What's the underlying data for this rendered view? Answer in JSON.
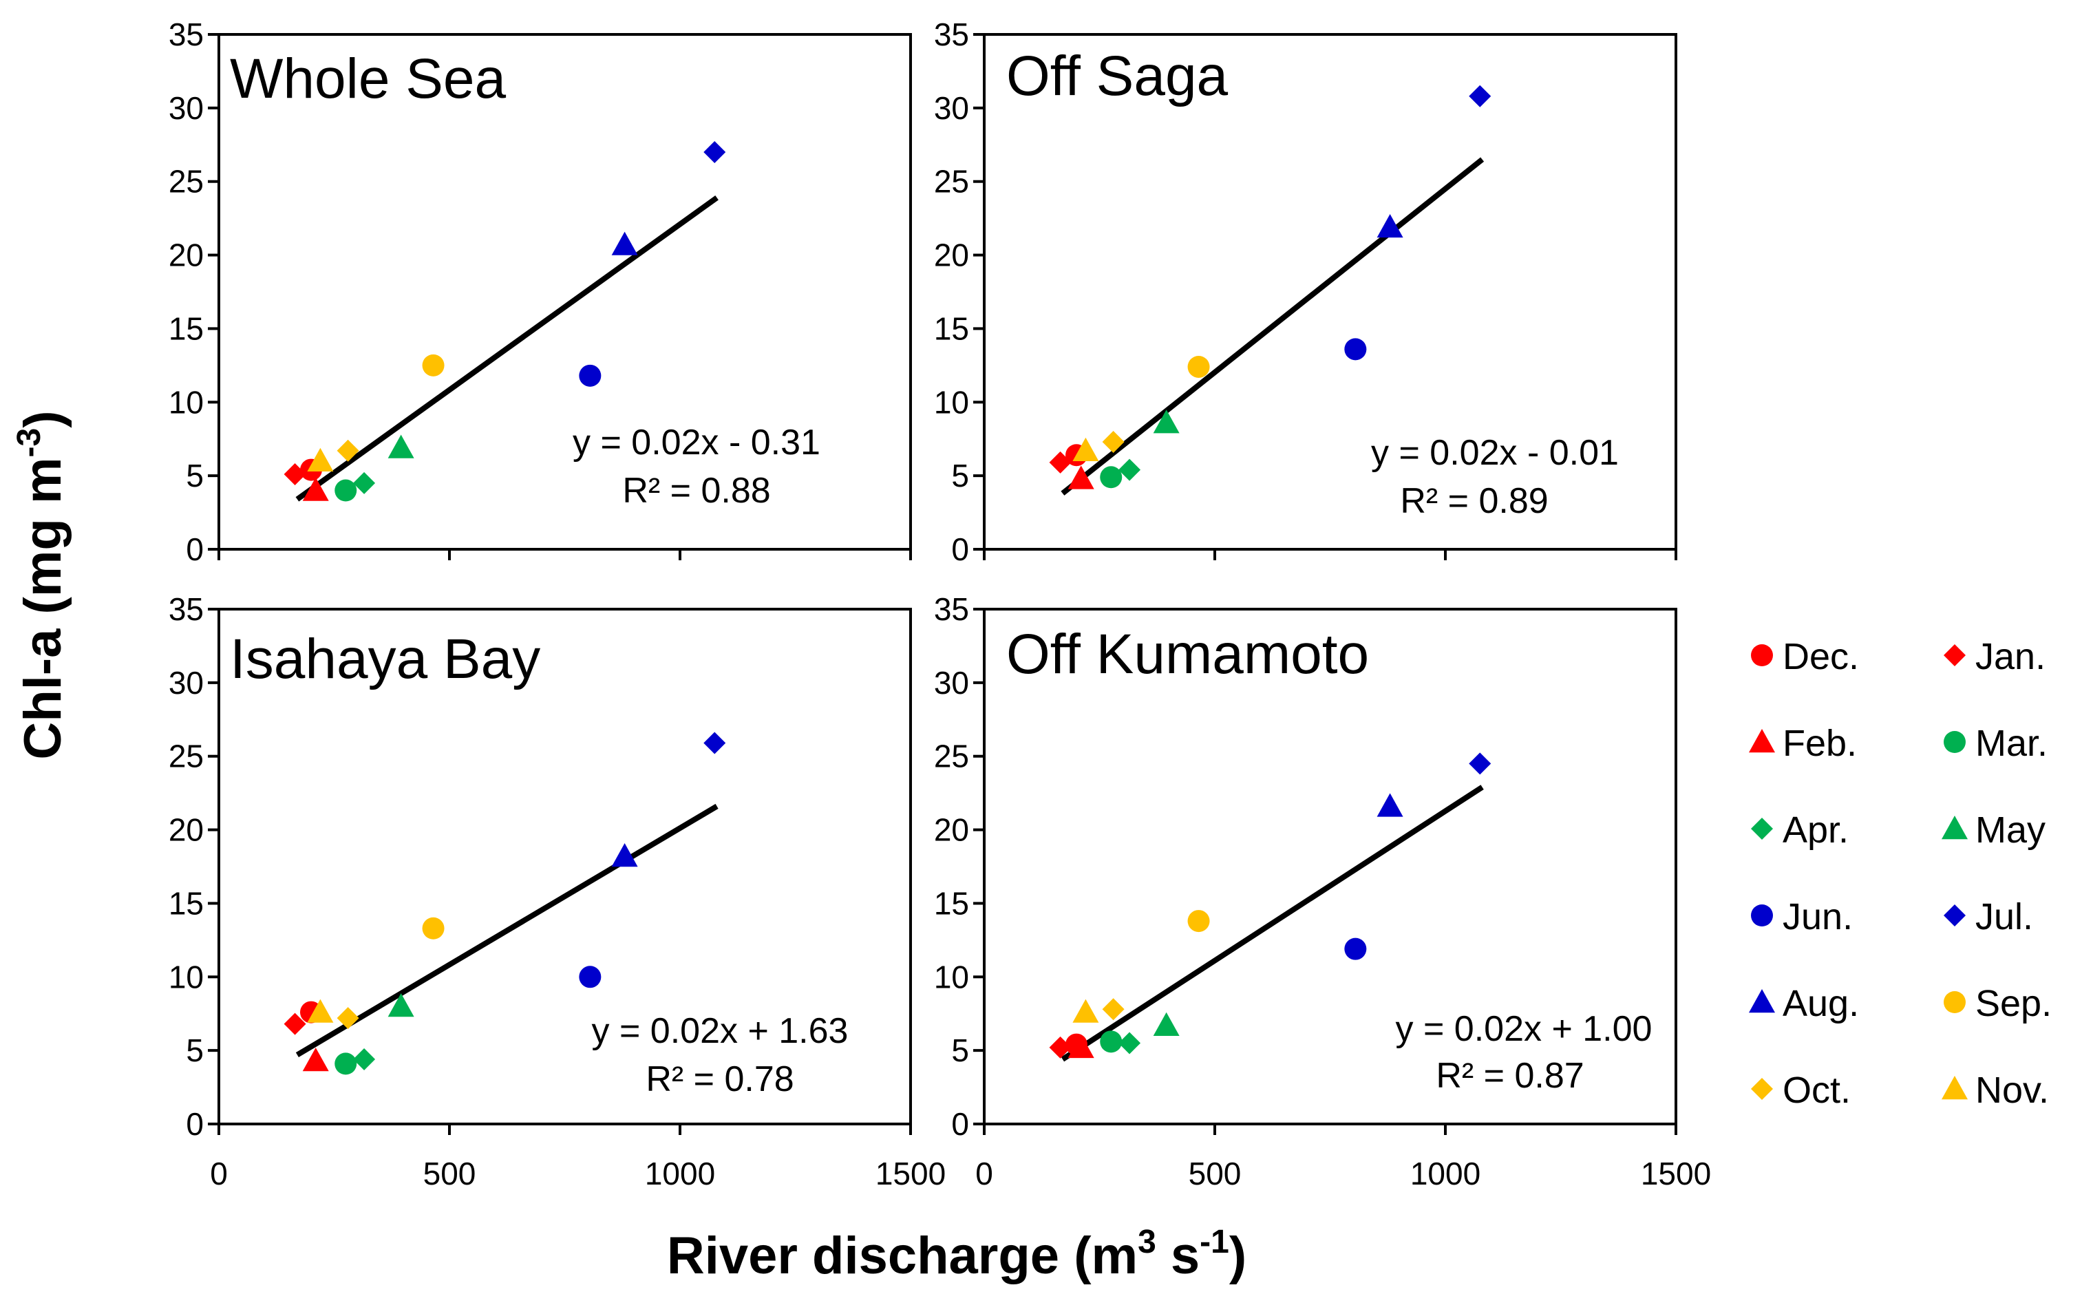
{
  "chart_data": {
    "type": "scatter",
    "ylabel": "Chl-a (mg m",
    "ylabel_sup": "-3",
    "ylabel_end": ")",
    "xlabel": "River discharge (m",
    "xlabel_sup1": "3",
    "xlabel_mid": " s",
    "xlabel_sup2": "-1",
    "xlabel_end": ")",
    "xlim": [
      0,
      1500
    ],
    "ylim": [
      0,
      35
    ],
    "xticks": [
      "0",
      "500",
      "1000",
      "1500"
    ],
    "yticks": [
      "0",
      "5",
      "10",
      "15",
      "20",
      "25",
      "30",
      "35"
    ],
    "months": [
      {
        "label": "Dec.",
        "color": "#ff0000",
        "marker": "circle"
      },
      {
        "label": "Jan.",
        "color": "#ff0000",
        "marker": "diamond"
      },
      {
        "label": "Feb.",
        "color": "#ff0000",
        "marker": "triangle"
      },
      {
        "label": "Mar.",
        "color": "#00b050",
        "marker": "circle"
      },
      {
        "label": "Apr.",
        "color": "#00b050",
        "marker": "diamond"
      },
      {
        "label": "May",
        "color": "#00b050",
        "marker": "triangle"
      },
      {
        "label": "Jun.",
        "color": "#0000cc",
        "marker": "circle"
      },
      {
        "label": "Jul.",
        "color": "#0000cc",
        "marker": "diamond"
      },
      {
        "label": "Aug.",
        "color": "#0000cc",
        "marker": "triangle"
      },
      {
        "label": "Sep.",
        "color": "#ffc000",
        "marker": "circle"
      },
      {
        "label": "Oct.",
        "color": "#ffc000",
        "marker": "diamond"
      },
      {
        "label": "Nov.",
        "color": "#ffc000",
        "marker": "triangle"
      }
    ],
    "panels": [
      {
        "title": "Whole Sea",
        "equation": "y = 0.02x - 0.31",
        "r2": "R² = 0.88",
        "trend": {
          "x": [
            170,
            1080
          ],
          "y": [
            3.4,
            23.9
          ]
        },
        "points": [
          {
            "month": "Dec.",
            "x": 200,
            "y": 5.4
          },
          {
            "month": "Jan.",
            "x": 165,
            "y": 5.1
          },
          {
            "month": "Feb.",
            "x": 210,
            "y": 4.0
          },
          {
            "month": "Mar.",
            "x": 275,
            "y": 4.0
          },
          {
            "month": "Apr.",
            "x": 315,
            "y": 4.5
          },
          {
            "month": "May",
            "x": 395,
            "y": 6.9
          },
          {
            "month": "Jun.",
            "x": 805,
            "y": 11.8
          },
          {
            "month": "Jul.",
            "x": 1075,
            "y": 27.0
          },
          {
            "month": "Aug.",
            "x": 880,
            "y": 20.7
          },
          {
            "month": "Sep.",
            "x": 465,
            "y": 12.5
          },
          {
            "month": "Oct.",
            "x": 280,
            "y": 6.7
          },
          {
            "month": "Nov.",
            "x": 220,
            "y": 6.0
          }
        ]
      },
      {
        "title": "Off Saga",
        "equation": "y = 0.02x - 0.01",
        "r2": "R² = 0.89",
        "trend": {
          "x": [
            170,
            1080
          ],
          "y": [
            3.8,
            26.5
          ]
        },
        "points": [
          {
            "month": "Dec.",
            "x": 200,
            "y": 6.4
          },
          {
            "month": "Jan.",
            "x": 165,
            "y": 5.9
          },
          {
            "month": "Feb.",
            "x": 210,
            "y": 4.8
          },
          {
            "month": "Mar.",
            "x": 275,
            "y": 4.9
          },
          {
            "month": "Apr.",
            "x": 315,
            "y": 5.4
          },
          {
            "month": "May",
            "x": 395,
            "y": 8.6
          },
          {
            "month": "Jun.",
            "x": 805,
            "y": 13.6
          },
          {
            "month": "Jul.",
            "x": 1075,
            "y": 30.8
          },
          {
            "month": "Aug.",
            "x": 880,
            "y": 21.9
          },
          {
            "month": "Sep.",
            "x": 465,
            "y": 12.4
          },
          {
            "month": "Oct.",
            "x": 280,
            "y": 7.3
          },
          {
            "month": "Nov.",
            "x": 220,
            "y": 6.7
          }
        ]
      },
      {
        "title": "Isahaya Bay",
        "equation": "y = 0.02x + 1.63",
        "r2": "R² = 0.78",
        "trend": {
          "x": [
            170,
            1080
          ],
          "y": [
            4.7,
            21.6
          ]
        },
        "points": [
          {
            "month": "Dec.",
            "x": 200,
            "y": 7.6
          },
          {
            "month": "Jan.",
            "x": 165,
            "y": 6.8
          },
          {
            "month": "Feb.",
            "x": 210,
            "y": 4.3
          },
          {
            "month": "Mar.",
            "x": 275,
            "y": 4.1
          },
          {
            "month": "Apr.",
            "x": 315,
            "y": 4.4
          },
          {
            "month": "May",
            "x": 395,
            "y": 8.0
          },
          {
            "month": "Jun.",
            "x": 805,
            "y": 10.0
          },
          {
            "month": "Jul.",
            "x": 1075,
            "y": 25.9
          },
          {
            "month": "Aug.",
            "x": 880,
            "y": 18.2
          },
          {
            "month": "Sep.",
            "x": 465,
            "y": 13.3
          },
          {
            "month": "Oct.",
            "x": 280,
            "y": 7.2
          },
          {
            "month": "Nov.",
            "x": 220,
            "y": 7.6
          }
        ]
      },
      {
        "title": "Off Kumamoto",
        "equation": "y = 0.02x + 1.00",
        "r2": "R² = 0.87",
        "trend": {
          "x": [
            170,
            1080
          ],
          "y": [
            4.4,
            22.9
          ]
        },
        "points": [
          {
            "month": "Dec.",
            "x": 200,
            "y": 5.4
          },
          {
            "month": "Jan.",
            "x": 165,
            "y": 5.2
          },
          {
            "month": "Feb.",
            "x": 210,
            "y": 5.2
          },
          {
            "month": "Mar.",
            "x": 275,
            "y": 5.6
          },
          {
            "month": "Apr.",
            "x": 315,
            "y": 5.5
          },
          {
            "month": "May",
            "x": 395,
            "y": 6.7
          },
          {
            "month": "Jun.",
            "x": 805,
            "y": 11.9
          },
          {
            "month": "Jul.",
            "x": 1075,
            "y": 24.5
          },
          {
            "month": "Aug.",
            "x": 880,
            "y": 21.6
          },
          {
            "month": "Sep.",
            "x": 465,
            "y": 13.8
          },
          {
            "month": "Oct.",
            "x": 280,
            "y": 7.8
          },
          {
            "month": "Nov.",
            "x": 220,
            "y": 7.6
          }
        ]
      }
    ]
  }
}
